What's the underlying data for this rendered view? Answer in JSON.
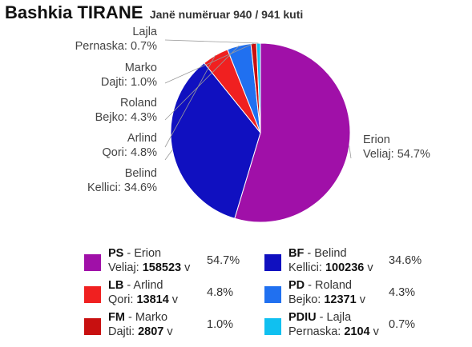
{
  "header": {
    "title": "Bashkia TIRANE",
    "subtitle": "Janë numëruar 940 / 941 kuti"
  },
  "chart_data": {
    "type": "pie",
    "title": "Bashkia TIRANE",
    "subtitle": "Janë numëruar 940 / 941 kuti",
    "slices": [
      {
        "party": "PS",
        "first": "Erion",
        "last": "Veliaj",
        "votes": 158523,
        "votes_label": "158523",
        "percent": 54.7,
        "percent_label": "54.7%",
        "color": "#a010a8"
      },
      {
        "party": "BF",
        "first": "Belind",
        "last": "Kellici",
        "votes": 100236,
        "votes_label": "100236",
        "percent": 34.6,
        "percent_label": "34.6%",
        "color": "#1010c0"
      },
      {
        "party": "LB",
        "first": "Arlind",
        "last": "Qori",
        "votes": 13814,
        "votes_label": "13814",
        "percent": 4.8,
        "percent_label": "4.8%",
        "color": "#f02020"
      },
      {
        "party": "PD",
        "first": "Roland",
        "last": "Bejko",
        "votes": 12371,
        "votes_label": "12371",
        "percent": 4.3,
        "percent_label": "4.3%",
        "color": "#2070f0"
      },
      {
        "party": "FM",
        "first": "Marko",
        "last": "Dajti",
        "votes": 2807,
        "votes_label": "2807",
        "percent": 1.0,
        "percent_label": "1.0%",
        "color": "#c81010"
      },
      {
        "party": "PDIU",
        "first": "Lajla",
        "last": "Pernaska",
        "votes": 2104,
        "votes_label": "2104",
        "percent": 0.7,
        "percent_label": "0.7%",
        "color": "#10c0f0"
      }
    ],
    "pie_labels": [
      {
        "line1": "Erion",
        "line2": "Veliaj: 54.7%"
      },
      {
        "line1": "Belind",
        "line2": "Kellici: 34.6%"
      },
      {
        "line1": "Arlind",
        "line2": "Qori: 4.8%"
      },
      {
        "line1": "Roland",
        "line2": "Bejko: 4.3%"
      },
      {
        "line1": "Marko",
        "line2": "Dajti: 1.0%"
      },
      {
        "line1": "Lajla",
        "line2": "Pernaska: 0.7%"
      }
    ],
    "legend_order": [
      0,
      1,
      2,
      3,
      4,
      5
    ],
    "legend_columns": 2,
    "votes_suffix": "v",
    "start_angle_deg": 0,
    "direction": "clockwise"
  }
}
